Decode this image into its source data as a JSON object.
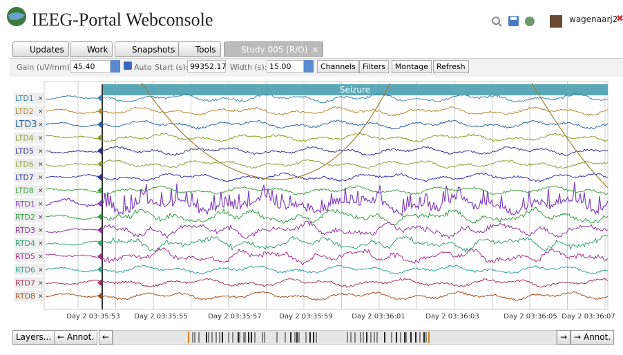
{
  "header": {
    "title": "IEEG-Portal Webconsole",
    "user": "wagenaarj2"
  },
  "tabs": [
    "Updates",
    "Work",
    "Snapshots",
    "Tools",
    "Study 005 (R/O)"
  ],
  "tab_close": "×",
  "toolbar": {
    "gain_label": "Gain (uV/mm):",
    "gain_value": "45.40",
    "auto_label": "Auto",
    "start_label": "Start (s):",
    "start_value": "99352.17",
    "width_label": "Width (s):",
    "width_value": "15.00",
    "buttons": [
      "Channels",
      "Filters",
      "Montage",
      "Refresh"
    ]
  },
  "annotation": "Seizure",
  "channel_remove": "×",
  "channels": [
    {
      "label": "LTD1",
      "color": "#3a86a8"
    },
    {
      "label": "LTD2",
      "color": "#b08a30"
    },
    {
      "label": "LTD3",
      "color": "#2a66a0"
    },
    {
      "label": "LTD4",
      "color": "#8a9a20"
    },
    {
      "label": "LTD5",
      "color": "#30308f"
    },
    {
      "label": "LTD6",
      "color": "#8aa030"
    },
    {
      "label": "LTD7",
      "color": "#3030a0"
    },
    {
      "label": "LTD8",
      "color": "#40a040"
    },
    {
      "label": "RTD1",
      "color": "#8040c0"
    },
    {
      "label": "RTD2",
      "color": "#30a040"
    },
    {
      "label": "RTD3",
      "color": "#9030a0"
    },
    {
      "label": "RTD4",
      "color": "#30a070"
    },
    {
      "label": "RTD5",
      "color": "#a03090"
    },
    {
      "label": "RTD6",
      "color": "#30a090"
    },
    {
      "label": "RTD7",
      "color": "#a03050"
    },
    {
      "label": "RTD8",
      "color": "#a05020"
    }
  ],
  "time_labels": [
    "Day 2 03:35:53",
    "Day 2 03:35:55",
    "Day 2 03:35:57",
    "Day 2 03:35:59",
    "Day 2 03:36:01",
    "Day 2 03:36:03",
    "Day 2 03:36:05",
    "Day 2 03:36:07"
  ],
  "footer": {
    "layers": "Layers...",
    "prev_annot": "← Annot.",
    "prev": "←",
    "next": "→",
    "next_annot": "→ Annot."
  }
}
